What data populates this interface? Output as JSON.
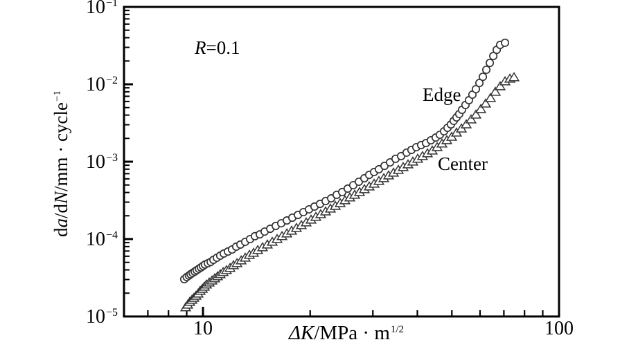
{
  "figure": {
    "background": "#ffffff"
  },
  "chart_data": {
    "type": "scatter",
    "title": "",
    "annotation_r": {
      "italic": "R",
      "rest": "=0.1"
    },
    "x_axis": {
      "label_italic": "ΔK",
      "label_unit": "/MPa · m",
      "label_sup": "1/2",
      "scale": "log",
      "min": 6,
      "max": 100,
      "major_ticks": [
        {
          "label": "10",
          "value": 10
        },
        {
          "label": "100",
          "value": 100
        }
      ],
      "minor_ticks": [
        7,
        8,
        9,
        20,
        30,
        40,
        50,
        60,
        70,
        80,
        90
      ]
    },
    "y_axis": {
      "label_parts": [
        {
          "text": "d",
          "italic": false
        },
        {
          "text": "a",
          "italic": true
        },
        {
          "text": "/d",
          "italic": false
        },
        {
          "text": "N",
          "italic": true
        },
        {
          "text": "/mm · cycle",
          "italic": false
        }
      ],
      "label_sup": "−1",
      "scale": "log",
      "min": 1e-05,
      "max": 0.1,
      "major_ticks": [
        {
          "base": "10",
          "exp": "−1",
          "value": 0.1
        },
        {
          "base": "10",
          "exp": "−2",
          "value": 0.01
        },
        {
          "base": "10",
          "exp": "−3",
          "value": 0.001
        },
        {
          "base": "10",
          "exp": "−4",
          "value": 0.0001
        },
        {
          "base": "10",
          "exp": "−5",
          "value": 1e-05
        }
      ],
      "minor_ticks": [
        2e-05,
        3e-05,
        4e-05,
        5e-05,
        6e-05,
        7e-05,
        8e-05,
        9e-05,
        0.0002,
        0.0003,
        0.0004,
        0.0005,
        0.0006,
        0.0007,
        0.0008,
        0.0009,
        0.002,
        0.003,
        0.004,
        0.005,
        0.006,
        0.007,
        0.008,
        0.009,
        0.02,
        0.03,
        0.04,
        0.05,
        0.06,
        0.07,
        0.08,
        0.09
      ]
    },
    "series": [
      {
        "name": "Edge",
        "label": "Edge",
        "marker": "circle",
        "points": [
          [
            8.86,
            3.03e-05
          ],
          [
            9.0,
            3.23e-05
          ],
          [
            9.13,
            3.37e-05
          ],
          [
            9.23,
            3.51e-05
          ],
          [
            9.35,
            3.65e-05
          ],
          [
            9.48,
            3.8e-05
          ],
          [
            9.6,
            3.96e-05
          ],
          [
            9.74,
            4.13e-05
          ],
          [
            9.87,
            4.3e-05
          ],
          [
            10.0,
            4.49e-05
          ],
          [
            10.13,
            4.68e-05
          ],
          [
            10.32,
            4.87e-05
          ],
          [
            10.51,
            5.07e-05
          ],
          [
            10.7,
            5.39e-05
          ],
          [
            10.94,
            5.74e-05
          ],
          [
            11.18,
            6.11e-05
          ],
          [
            11.44,
            6.5e-05
          ],
          [
            11.75,
            6.9e-05
          ],
          [
            12.07,
            7.33e-05
          ],
          [
            12.4,
            7.98e-05
          ],
          [
            12.74,
            8.49e-05
          ],
          [
            13.14,
            9.21e-05
          ],
          [
            13.56,
            0.0001
          ],
          [
            13.99,
            0.000109
          ],
          [
            14.44,
            0.000115
          ],
          [
            14.9,
            0.000125
          ],
          [
            15.45,
            0.000136
          ],
          [
            16.01,
            0.000148
          ],
          [
            16.59,
            0.00016
          ],
          [
            17.2,
            0.000174
          ],
          [
            17.82,
            0.000189
          ],
          [
            18.48,
            0.000205
          ],
          [
            19.14,
            0.000223
          ],
          [
            19.85,
            0.000242
          ],
          [
            20.57,
            0.000263
          ],
          [
            21.32,
            0.000285
          ],
          [
            22.1,
            0.00031
          ],
          [
            22.91,
            0.000336
          ],
          [
            23.74,
            0.000373
          ],
          [
            24.61,
            0.000405
          ],
          [
            25.5,
            0.000449
          ],
          [
            26.43,
            0.000497
          ],
          [
            27.4,
            0.000551
          ],
          [
            28.4,
            0.000611
          ],
          [
            29.3,
            0.000676
          ],
          [
            30.24,
            0.000735
          ],
          [
            31.2,
            0.000798
          ],
          [
            32.34,
            0.000883
          ],
          [
            33.52,
            0.000979
          ],
          [
            34.74,
            0.00109
          ],
          [
            36.01,
            0.00118
          ],
          [
            37.32,
            0.00131
          ],
          [
            38.5,
            0.00142
          ],
          [
            39.73,
            0.00154
          ],
          [
            41.0,
            0.00164
          ],
          [
            42.31,
            0.00174
          ],
          [
            43.66,
            0.00189
          ],
          [
            45.05,
            0.00205
          ],
          [
            46.28,
            0.00223
          ],
          [
            47.53,
            0.00247
          ],
          [
            48.61,
            0.00274
          ],
          [
            49.71,
            0.00303
          ],
          [
            50.61,
            0.00337
          ],
          [
            51.53,
            0.00373
          ],
          [
            52.45,
            0.00413
          ],
          [
            53.4,
            0.00468
          ],
          [
            54.61,
            0.0054
          ],
          [
            55.85,
            0.00624
          ],
          [
            57.11,
            0.00735
          ],
          [
            58.42,
            0.00866
          ],
          [
            59.75,
            0.0104
          ],
          [
            61.1,
            0.0125
          ],
          [
            62.49,
            0.0154
          ],
          [
            63.91,
            0.0189
          ],
          [
            65.37,
            0.0232
          ],
          [
            66.84,
            0.0279
          ],
          [
            68.33,
            0.0323
          ],
          [
            70.52,
            0.0344
          ]
        ]
      },
      {
        "name": "Center",
        "label": "Center",
        "marker": "triangle",
        "points": [
          [
            8.94,
            1.31e-05
          ],
          [
            9.06,
            1.42e-05
          ],
          [
            9.18,
            1.54e-05
          ],
          [
            9.31,
            1.64e-05
          ],
          [
            9.43,
            1.74e-05
          ],
          [
            9.56,
            1.85e-05
          ],
          [
            9.69,
            1.97e-05
          ],
          [
            9.82,
            2.14e-05
          ],
          [
            9.96,
            2.27e-05
          ],
          [
            10.09,
            2.42e-05
          ],
          [
            10.23,
            2.58e-05
          ],
          [
            10.41,
            2.74e-05
          ],
          [
            10.6,
            2.91e-05
          ],
          [
            10.79,
            3.1e-05
          ],
          [
            10.99,
            3.3e-05
          ],
          [
            11.18,
            3.51e-05
          ],
          [
            11.39,
            3.73e-05
          ],
          [
            11.64,
            3.96e-05
          ],
          [
            11.91,
            4.22e-05
          ],
          [
            12.18,
            4.58e-05
          ],
          [
            12.46,
            4.87e-05
          ],
          [
            12.8,
            5.29e-05
          ],
          [
            13.14,
            5.74e-05
          ],
          [
            13.5,
            6.24e-05
          ],
          [
            13.87,
            6.63e-05
          ],
          [
            14.25,
            7.2e-05
          ],
          [
            14.7,
            7.82e-05
          ],
          [
            15.16,
            8.49e-05
          ],
          [
            15.65,
            9.21e-05
          ],
          [
            16.15,
            0.0001
          ],
          [
            16.67,
            0.000109
          ],
          [
            17.2,
            0.000118
          ],
          [
            17.74,
            0.000128
          ],
          [
            18.3,
            0.000139
          ],
          [
            18.89,
            0.000151
          ],
          [
            19.49,
            0.000164
          ],
          [
            20.11,
            0.000178
          ],
          [
            20.75,
            0.000193
          ],
          [
            21.41,
            0.000209
          ],
          [
            22.1,
            0.000227
          ],
          [
            22.8,
            0.000247
          ],
          [
            23.53,
            0.000268
          ],
          [
            24.28,
            0.000291
          ],
          [
            25.05,
            0.000316
          ],
          [
            25.85,
            0.000344
          ],
          [
            26.67,
            0.000373
          ],
          [
            27.52,
            0.000405
          ],
          [
            28.4,
            0.00044
          ],
          [
            29.3,
            0.000477
          ],
          [
            30.24,
            0.000518
          ],
          [
            31.2,
            0.000562
          ],
          [
            32.2,
            0.000611
          ],
          [
            33.22,
            0.000663
          ],
          [
            34.28,
            0.00072
          ],
          [
            35.37,
            0.000782
          ],
          [
            36.5,
            0.000849
          ],
          [
            37.66,
            0.000921
          ],
          [
            38.85,
            0.001
          ],
          [
            40.09,
            0.00109
          ],
          [
            41.36,
            0.00118
          ],
          [
            42.7,
            0.00128
          ],
          [
            44.05,
            0.00139
          ],
          [
            45.46,
            0.00154
          ],
          [
            46.9,
            0.00171
          ],
          [
            48.4,
            0.00189
          ],
          [
            49.94,
            0.00209
          ],
          [
            51.53,
            0.00237
          ],
          [
            53.18,
            0.00268
          ],
          [
            54.87,
            0.00303
          ],
          [
            56.62,
            0.00351
          ],
          [
            58.42,
            0.00405
          ],
          [
            60.28,
            0.00477
          ],
          [
            62.21,
            0.00562
          ],
          [
            64.2,
            0.00663
          ],
          [
            66.23,
            0.00798
          ],
          [
            68.33,
            0.0094
          ],
          [
            70.52,
            0.0109
          ],
          [
            72.77,
            0.0118
          ],
          [
            74.74,
            0.0123
          ]
        ]
      }
    ],
    "colors": {
      "axis": "#000000",
      "text": "#000000",
      "marker_stroke": "#333333",
      "marker_fill": "#ffffff",
      "background": "#ffffff"
    },
    "legend_position": "inline-annotations",
    "grid": false
  }
}
